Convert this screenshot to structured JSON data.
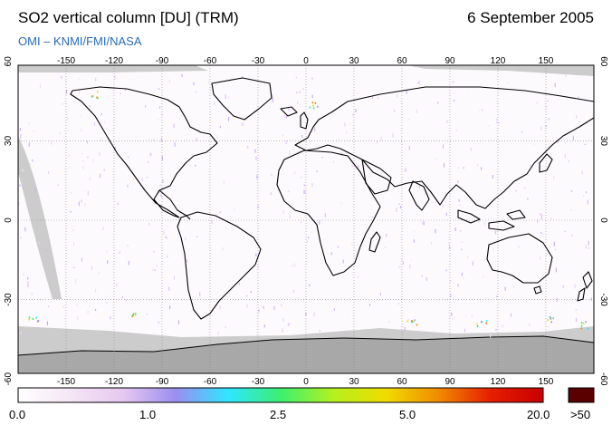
{
  "header": {
    "title": "SO2 vertical column [DU] (TRM)",
    "date": "6 September 2005",
    "credit": "OMI  –  KNMI/FMI/NASA",
    "credit_color": "#2a6cb5"
  },
  "map": {
    "projection": "equirectangular",
    "lon_ticks": [
      "-150",
      "-120",
      "-90",
      "-60",
      "-30",
      "0",
      "30",
      "60",
      "90",
      "120",
      "150"
    ],
    "lat_ticks": [
      "60",
      "30",
      "0",
      "-30",
      "-60"
    ],
    "gridlines": "dotted",
    "no_data_color": "#cccccc",
    "antarctica_color": "#a8a8a8"
  },
  "colorbar": {
    "labels": [
      "0.0",
      "1.0",
      "2.5",
      "5.0",
      "20.0",
      ">50"
    ],
    "stops": [
      "#ffffff",
      "#f5e6f5",
      "#e6c8f0",
      "#9b8ef0",
      "#2ee6ff",
      "#3cf06e",
      "#b4f01e",
      "#f0dc00",
      "#f08c00",
      "#e61e00",
      "#c80000"
    ],
    "over_color": "#5a0000"
  }
}
